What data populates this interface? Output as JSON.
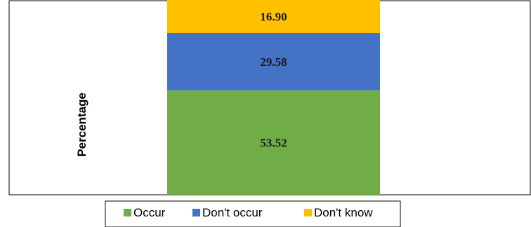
{
  "chart_data": {
    "type": "bar",
    "stacked": true,
    "ylabel": "Percentage",
    "categories": [
      ""
    ],
    "series": [
      {
        "name": "Occur",
        "values": [
          53.52
        ],
        "color": "#70ad47"
      },
      {
        "name": "Don't occur",
        "values": [
          29.58
        ],
        "color": "#4472c4"
      },
      {
        "name": "Don't know",
        "values": [
          16.9
        ],
        "color": "#ffc000"
      }
    ],
    "data_labels": [
      "53.52",
      "29.58",
      "16.90"
    ],
    "ylim": [
      0,
      100
    ],
    "grid": false,
    "legend": "bottom"
  }
}
